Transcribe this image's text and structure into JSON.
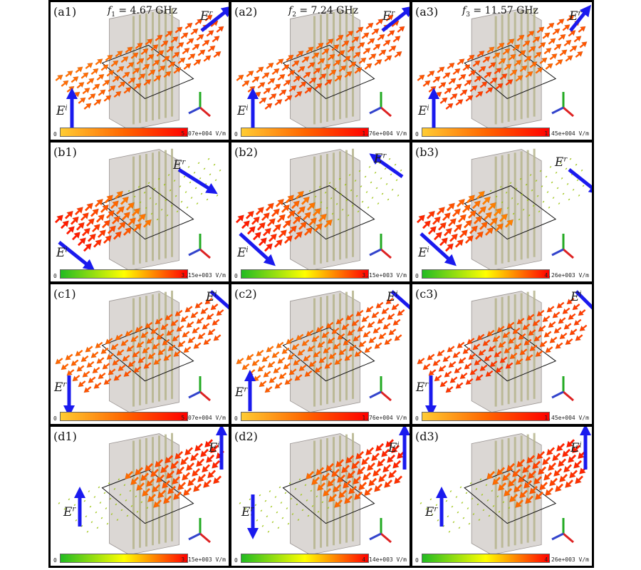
{
  "colors": {
    "arrow_blue": "#1a1aee",
    "grad_orange": [
      "#ffcc33",
      "#ff6600",
      "#ff0000"
    ],
    "grad_green": [
      "#22bb22",
      "#ffff00",
      "#ff0000"
    ],
    "slab_gray": "#cfc9c6",
    "stripe": "#b5b48c"
  },
  "panels": [
    {
      "label": "(a1)",
      "freq_sym": "f",
      "freq_sub": "1",
      "freq_val": "= 4.67 GHz",
      "field": "E",
      "field_sup": "r",
      "field2": "E",
      "field2_sup": "i",
      "cb_min": "0",
      "cb_max": "5.07e+004 V/m"
    },
    {
      "label": "(a2)",
      "freq_sym": "f",
      "freq_sub": "2",
      "freq_val": "= 7.24 GHz",
      "field": "E",
      "field_sup": "r",
      "field2": "E",
      "field2_sup": "i",
      "cb_min": "0",
      "cb_max": "1.76e+004 V/m"
    },
    {
      "label": "(a3)",
      "freq_sym": "f",
      "freq_sub": "3",
      "freq_val": "= 11.57 GHz",
      "field": "E",
      "field_sup": "r",
      "field2": "E",
      "field2_sup": "i",
      "cb_min": "0",
      "cb_max": "1.45e+004 V/m"
    },
    {
      "label": "(b1)",
      "field": "E",
      "field_sup": "r",
      "field2": "E",
      "field2_sup": "i",
      "cb_min": "0",
      "cb_max": "3.15e+003 V/m"
    },
    {
      "label": "(b2)",
      "field": "E",
      "field_sup": "r",
      "field2": "E",
      "field2_sup": "i",
      "cb_min": "0",
      "cb_max": "3.15e+003 V/m"
    },
    {
      "label": "(b3)",
      "field": "E",
      "field_sup": "r",
      "field2": "E",
      "field2_sup": "i",
      "cb_min": "0",
      "cb_max": "4.26e+003 V/m"
    },
    {
      "label": "(c1)",
      "field": "E",
      "field_sup": "i",
      "field2": "E",
      "field2_sup": "r",
      "cb_min": "0",
      "cb_max": "5.07e+004 V/m"
    },
    {
      "label": "(c2)",
      "field": "E",
      "field_sup": "i",
      "field2": "E",
      "field2_sup": "r",
      "cb_min": "0",
      "cb_max": "1.76e+004 V/m"
    },
    {
      "label": "(c3)",
      "field": "E",
      "field_sup": "i",
      "field2": "E",
      "field2_sup": "r",
      "cb_min": "0",
      "cb_max": "1.45e+004 V/m"
    },
    {
      "label": "(d1)",
      "field": "E",
      "field_sup": "i",
      "field2": "E",
      "field2_sup": "r",
      "cb_min": "0",
      "cb_max": "3.15e+003 V/m"
    },
    {
      "label": "(d2)",
      "field": "E",
      "field_sup": "i",
      "field2": "E",
      "field2_sup": "r",
      "cb_min": "0",
      "cb_max": "4.14e+003 V/m"
    },
    {
      "label": "(d3)",
      "field": "E",
      "field_sup": "i",
      "field2": "E",
      "field2_sup": "r",
      "cb_min": "0",
      "cb_max": "4.26e+003 V/m"
    }
  ]
}
